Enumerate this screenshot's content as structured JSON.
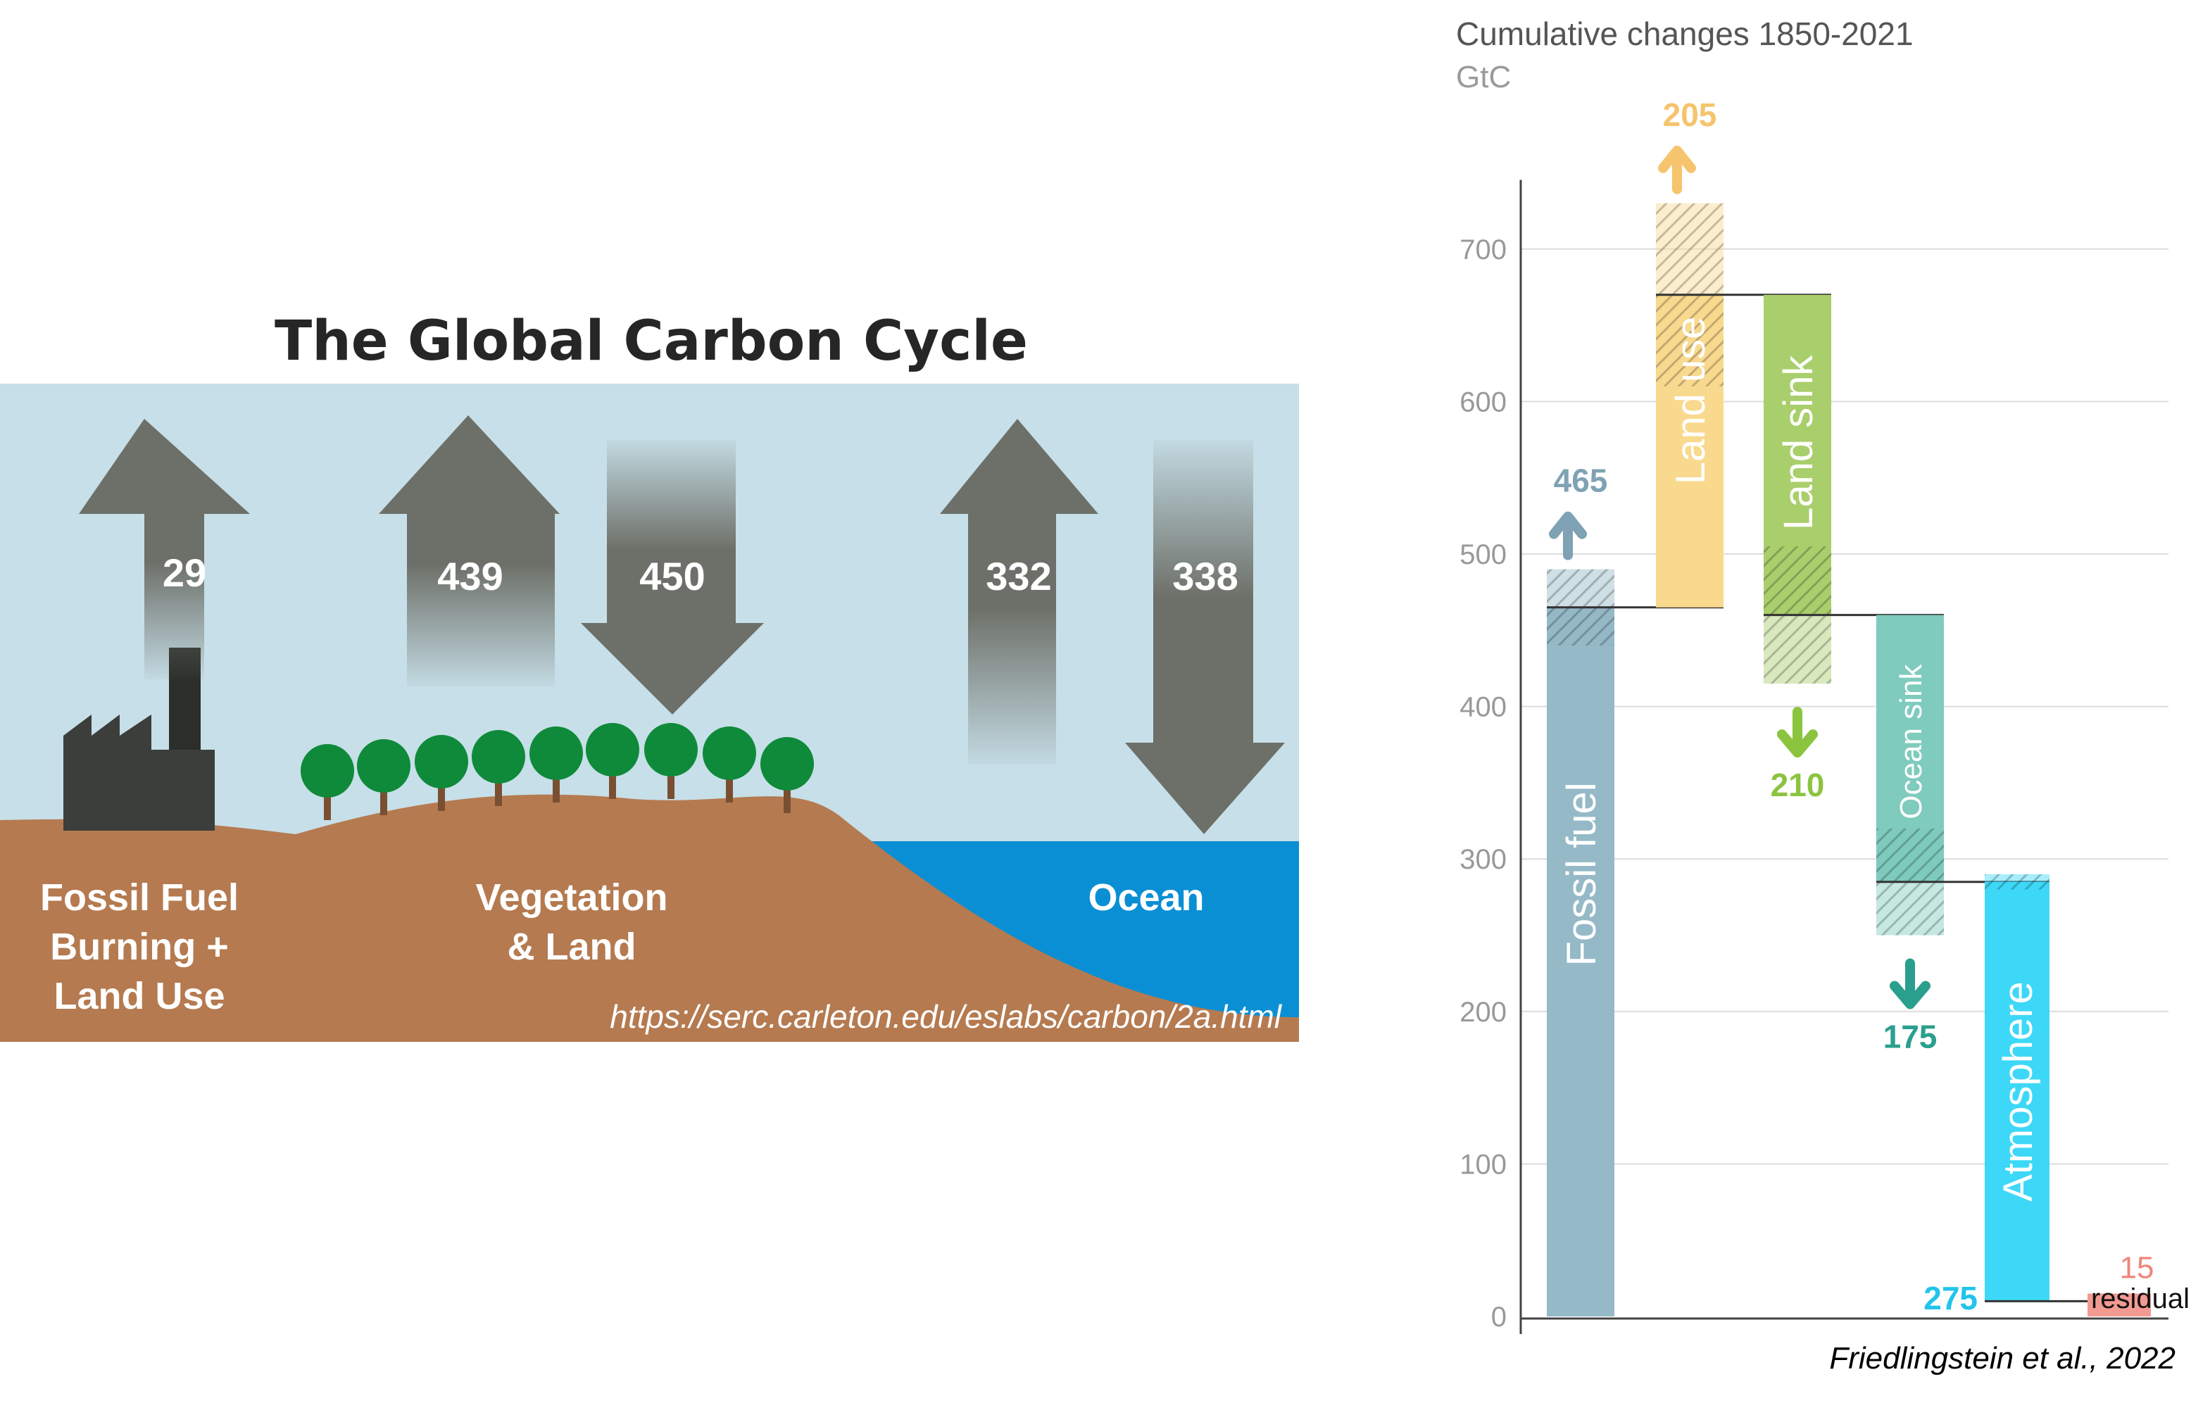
{
  "cycle": {
    "title": "The Global Carbon Cycle",
    "fluxes": [
      {
        "value": "29",
        "direction": "up",
        "source": "fossil"
      },
      {
        "value": "439",
        "direction": "up",
        "source": "vegetation"
      },
      {
        "value": "450",
        "direction": "down",
        "source": "vegetation"
      },
      {
        "value": "332",
        "direction": "up",
        "source": "ocean"
      },
      {
        "value": "338",
        "direction": "down",
        "source": "ocean"
      }
    ],
    "labels": {
      "fossil": [
        "Fossil Fuel",
        "Burning +",
        "Land Use"
      ],
      "vegetation": [
        "Vegetation",
        "& Land"
      ],
      "ocean": [
        "Ocean"
      ]
    },
    "source_url": "https://serc.carleton.edu/eslabs/carbon/2a.html",
    "colors": {
      "sky": "#c7dfe8",
      "ground": "#b57a50",
      "ocean": "#0a8fd4",
      "arrow": "#6d7068",
      "tree": "#0e8a3a"
    }
  },
  "chart_data": {
    "type": "bar",
    "title": "Cumulative changes 1850-2021",
    "subtitle": "GtC",
    "ylim": [
      0,
      750
    ],
    "yticks": [
      0,
      100,
      200,
      300,
      400,
      500,
      600,
      700
    ],
    "bars": [
      {
        "label": "Fossil fuel",
        "bottom": 0,
        "top": 465,
        "uncertainty": 25,
        "value_label": "465",
        "arrow": "up",
        "color": "#95b9c7",
        "label_color": "#7fa2b4"
      },
      {
        "label": "Land use",
        "bottom": 465,
        "top": 670,
        "uncertainty": 60,
        "value_label": "205",
        "arrow": "up",
        "color": "#f9d98e",
        "label_color": "#f5c46d"
      },
      {
        "label": "Land sink",
        "bottom": 460,
        "top": 670,
        "uncertainty": 45,
        "value_label": "210",
        "arrow": "down",
        "color": "#a9ce6c",
        "label_color": "#8bc43f"
      },
      {
        "label": "Ocean sink",
        "bottom": 285,
        "top": 460,
        "uncertainty": 35,
        "value_label": "175",
        "arrow": "down",
        "color": "#7fcbbd",
        "label_color": "#2a9f8d"
      },
      {
        "label": "Atmosphere",
        "bottom": 10,
        "top": 285,
        "uncertainty": 5,
        "value_label": "275",
        "arrow": "none",
        "color": "#3dd8f7",
        "label_color": "#22c4ec"
      },
      {
        "label": "residual",
        "bottom": 0,
        "top": 15,
        "uncertainty": 0,
        "value_label": "15",
        "arrow": "none",
        "color": "#f29a92",
        "label_color": "#f08479"
      }
    ],
    "credit": "Friedlingstein et al., 2022",
    "grid": true,
    "colors": {
      "axis": "#444444",
      "grid": "#dcdcdc",
      "tick": "#999999"
    }
  }
}
